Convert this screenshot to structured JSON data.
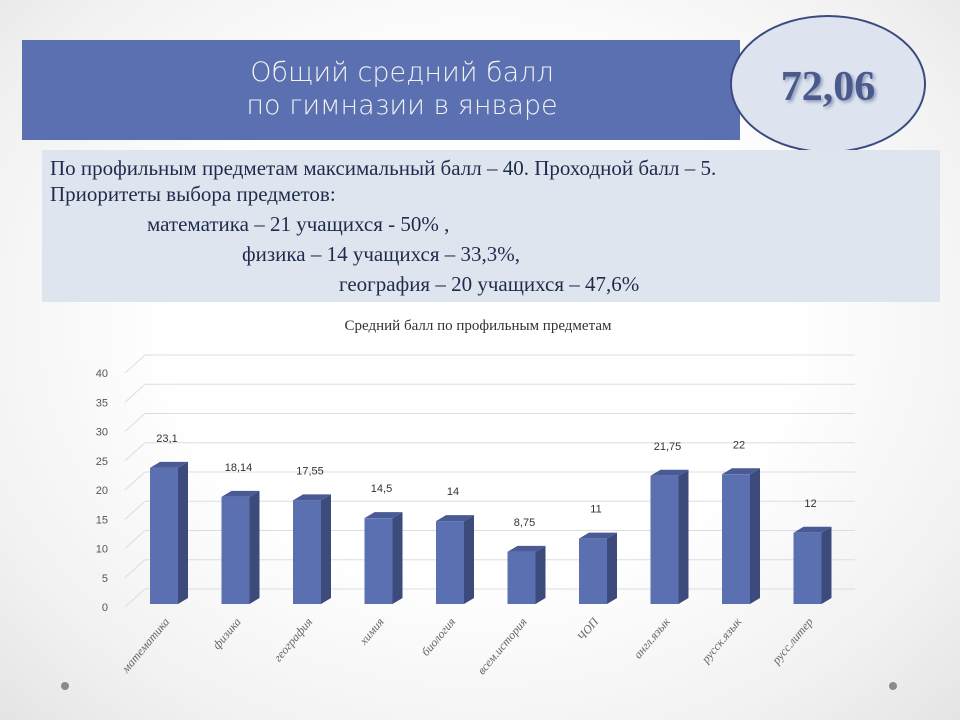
{
  "header": {
    "title_line1": "Общий средний балл",
    "title_line2": "по гимназии в январе"
  },
  "badge": {
    "value": "72,06"
  },
  "info": {
    "line1": "По профильным предметам максимальный балл – 40.   Проходной балл – 5.",
    "line2": "Приоритеты выбора предметов:",
    "line3": "математика – 21 учащихся - 50% ,",
    "line4": "физика – 14 учащихся – 33,3%,",
    "line5": "география – 20 учащихся – 47,6%"
  },
  "colors": {
    "header": "#5b70b0",
    "bar": "#5b70b0",
    "bar_side": "#3d4b7c",
    "info_bg": "#dfe5ee"
  },
  "chart_data": {
    "type": "bar",
    "title": "Средний балл по профильным предметам",
    "categories": [
      "математика",
      "физика",
      "география",
      "химия",
      "биология",
      "всем.история",
      "ЧОП",
      "англ.язык",
      "русск.язык",
      "русс.литер"
    ],
    "values": [
      23.1,
      18.14,
      17.55,
      14.5,
      14,
      8.75,
      11,
      21.75,
      22,
      12
    ],
    "data_labels": [
      "23,1",
      "18,14",
      "17,55",
      "14,5",
      "14",
      "8,75",
      "11",
      "21,75",
      "22",
      "12"
    ],
    "yticks": [
      "0",
      "5",
      "10",
      "15",
      "20",
      "25",
      "30",
      "35",
      "40"
    ],
    "ylim": [
      0,
      40
    ],
    "grid": true,
    "style": "3d"
  }
}
